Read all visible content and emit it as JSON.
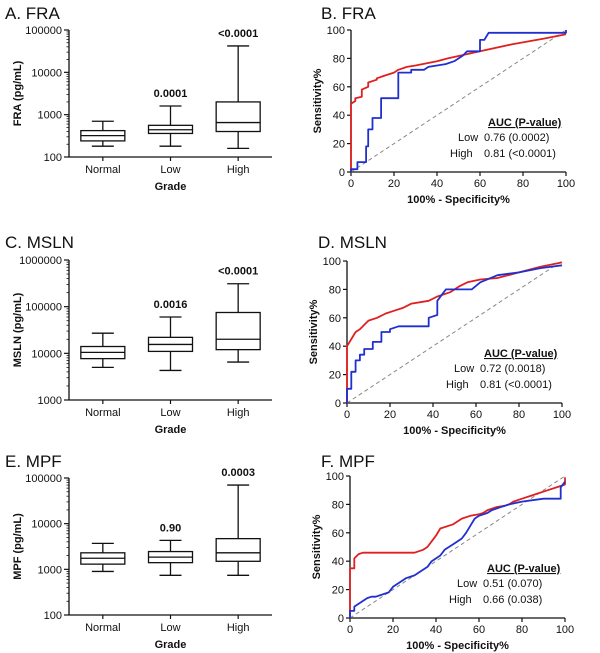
{
  "figure": {
    "background": "#ffffff"
  },
  "chart_data": [
    {
      "id": "A",
      "type": "boxplot",
      "title": "A. FRA",
      "xlabel": "Grade",
      "ylabel": "FRA (pg/mL)",
      "yscale": "log",
      "ylim": [
        100,
        100000
      ],
      "yticks": [
        "100",
        "1000",
        "10000",
        "100000"
      ],
      "categories": [
        "Normal",
        "Low",
        "High"
      ],
      "boxes": [
        {
          "group": "Normal",
          "min": 180,
          "q1": 240,
          "median": 320,
          "q3": 420,
          "max": 700,
          "label": ""
        },
        {
          "group": "Low",
          "min": 180,
          "q1": 360,
          "median": 440,
          "q3": 560,
          "max": 1600,
          "label": "0.0001"
        },
        {
          "group": "High",
          "min": 160,
          "q1": 400,
          "median": 650,
          "q3": 2000,
          "max": 42000,
          "label": "<0.0001"
        }
      ]
    },
    {
      "id": "B",
      "type": "roc",
      "title": "B. FRA",
      "xlabel": "100% - Specificity%",
      "ylabel": "Sensitivity%",
      "xlim": [
        0,
        100
      ],
      "ylim": [
        0,
        100
      ],
      "xticks": [
        "0",
        "20",
        "40",
        "60",
        "80",
        "100"
      ],
      "yticks": [
        "0",
        "20",
        "40",
        "60",
        "80",
        "100"
      ],
      "legend_title": "AUC (P-value)",
      "legend": [
        {
          "name": "Low",
          "value": "0.76 (0.0002)"
        },
        {
          "name": "High",
          "value": "0.81 (<0.0001)"
        }
      ],
      "series": [
        {
          "name": "High",
          "color": "#e02020",
          "x": [
            0,
            0,
            2,
            2,
            5,
            5,
            8,
            8,
            12,
            12,
            16,
            20,
            22,
            26,
            30,
            40,
            45,
            60,
            75,
            90,
            100
          ],
          "y": [
            0,
            48,
            50,
            52,
            53,
            58,
            60,
            63,
            65,
            66,
            68,
            70,
            72,
            74,
            75,
            78,
            80,
            85,
            90,
            94,
            97
          ]
        },
        {
          "name": "Low",
          "color": "#2030d0",
          "x": [
            0,
            0,
            3,
            3,
            7,
            7,
            8,
            8,
            10,
            10,
            14,
            14,
            22,
            22,
            28,
            28,
            34,
            36,
            44,
            48,
            52,
            54,
            60,
            60,
            62,
            64,
            100,
            100
          ],
          "y": [
            0,
            2,
            2,
            7,
            7,
            18,
            18,
            30,
            30,
            38,
            38,
            52,
            52,
            70,
            70,
            72,
            72,
            74,
            76,
            78,
            82,
            85,
            85,
            93,
            93,
            98,
            98,
            100
          ]
        },
        {
          "name": "Reference",
          "color": "#888888",
          "dashed": true,
          "x": [
            0,
            100
          ],
          "y": [
            0,
            100
          ]
        }
      ]
    },
    {
      "id": "C",
      "type": "boxplot",
      "title": "C. MSLN",
      "xlabel": "Grade",
      "ylabel": "MSLN (pg/mL)",
      "yscale": "log",
      "ylim": [
        1000,
        1000000
      ],
      "yticks": [
        "1000",
        "10000",
        "100000",
        "1000000"
      ],
      "categories": [
        "Normal",
        "Low",
        "High"
      ],
      "boxes": [
        {
          "group": "Normal",
          "min": 5000,
          "q1": 7700,
          "median": 10500,
          "q3": 14000,
          "max": 27000,
          "label": ""
        },
        {
          "group": "Low",
          "min": 4300,
          "q1": 11000,
          "median": 15500,
          "q3": 22000,
          "max": 60000,
          "label": "0.0016"
        },
        {
          "group": "High",
          "min": 6500,
          "q1": 12000,
          "median": 20000,
          "q3": 75000,
          "max": 310000,
          "label": "<0.0001"
        }
      ]
    },
    {
      "id": "D",
      "type": "roc",
      "title": "D. MSLN",
      "xlabel": "100% - Specificity%",
      "ylabel": "Sensitivity%",
      "xlim": [
        0,
        100
      ],
      "ylim": [
        0,
        100
      ],
      "xticks": [
        "0",
        "20",
        "40",
        "60",
        "80",
        "100"
      ],
      "yticks": [
        "0",
        "20",
        "40",
        "60",
        "80",
        "100"
      ],
      "legend_title": "AUC (P-value)",
      "legend": [
        {
          "name": "Low",
          "value": "0.72 (0.0018)"
        },
        {
          "name": "High",
          "value": "0.81 (<0.0001)"
        }
      ],
      "series": [
        {
          "name": "High",
          "color": "#e02020",
          "x": [
            0,
            0,
            2,
            4,
            6,
            8,
            10,
            14,
            18,
            22,
            26,
            30,
            38,
            42,
            48,
            52,
            56,
            62,
            70,
            80,
            90,
            100
          ],
          "y": [
            0,
            40,
            45,
            50,
            52,
            55,
            58,
            60,
            63,
            65,
            67,
            70,
            72,
            75,
            78,
            82,
            85,
            87,
            88,
            92,
            96,
            99
          ]
        },
        {
          "name": "Low",
          "color": "#2030d0",
          "x": [
            0,
            0,
            2,
            2,
            4,
            4,
            6,
            6,
            8,
            8,
            12,
            12,
            16,
            16,
            20,
            20,
            24,
            30,
            38,
            38,
            42,
            42,
            46,
            52,
            58,
            62,
            70,
            80,
            90,
            100
          ],
          "y": [
            0,
            10,
            10,
            22,
            22,
            30,
            30,
            34,
            34,
            38,
            38,
            43,
            43,
            50,
            50,
            52,
            54,
            54,
            54,
            60,
            62,
            72,
            80,
            80,
            80,
            85,
            90,
            92,
            95,
            97
          ]
        },
        {
          "name": "Reference",
          "color": "#888888",
          "dashed": true,
          "x": [
            0,
            100
          ],
          "y": [
            0,
            100
          ]
        }
      ]
    },
    {
      "id": "E",
      "type": "boxplot",
      "title": "E. MPF",
      "xlabel": "Grade",
      "ylabel": "MPF (pg/mL)",
      "yscale": "log",
      "ylim": [
        100,
        100000
      ],
      "yticks": [
        "100",
        "1000",
        "10000",
        "100000"
      ],
      "categories": [
        "Normal",
        "Low",
        "High"
      ],
      "boxes": [
        {
          "group": "Normal",
          "min": 900,
          "q1": 1300,
          "median": 1750,
          "q3": 2300,
          "max": 3700,
          "label": ""
        },
        {
          "group": "Low",
          "min": 740,
          "q1": 1400,
          "median": 1850,
          "q3": 2450,
          "max": 4300,
          "label": "0.90"
        },
        {
          "group": "High",
          "min": 740,
          "q1": 1500,
          "median": 2300,
          "q3": 4700,
          "max": 70000,
          "label": "0.0003"
        }
      ]
    },
    {
      "id": "F",
      "type": "roc",
      "title": "F. MPF",
      "xlabel": "100% - Specificity%",
      "ylabel": "Sensitivity%",
      "xlim": [
        0,
        100
      ],
      "ylim": [
        0,
        100
      ],
      "xticks": [
        "0",
        "20",
        "40",
        "60",
        "80",
        "100"
      ],
      "yticks": [
        "0",
        "20",
        "40",
        "60",
        "80",
        "100"
      ],
      "legend_title": "AUC (P-value)",
      "legend": [
        {
          "name": "Low",
          "value": "0.51 (0.070)"
        },
        {
          "name": "High",
          "value": "0.66 (0.038)"
        }
      ],
      "series": [
        {
          "name": "High",
          "color": "#e02020",
          "x": [
            0,
            0,
            2,
            2,
            4,
            6,
            8,
            30,
            34,
            36,
            38,
            40,
            42,
            48,
            52,
            56,
            60,
            62,
            64,
            68,
            72,
            74,
            76,
            80,
            84,
            88,
            92,
            96,
            100,
            100
          ],
          "y": [
            0,
            35,
            35,
            42,
            45,
            46,
            46,
            46,
            48,
            50,
            54,
            58,
            63,
            66,
            70,
            72,
            73,
            74,
            76,
            78,
            79,
            80,
            82,
            84,
            86,
            88,
            90,
            92,
            94,
            99
          ]
        },
        {
          "name": "Low",
          "color": "#2030d0",
          "x": [
            0,
            0,
            2,
            2,
            8,
            10,
            12,
            18,
            20,
            24,
            26,
            30,
            36,
            38,
            42,
            44,
            48,
            52,
            54,
            56,
            58,
            60,
            64,
            66,
            70,
            74,
            80,
            90,
            98,
            98,
            100
          ],
          "y": [
            0,
            5,
            5,
            8,
            14,
            15,
            15,
            18,
            22,
            26,
            28,
            30,
            36,
            40,
            44,
            48,
            52,
            56,
            60,
            65,
            70,
            72,
            74,
            76,
            78,
            80,
            82,
            84,
            84,
            92,
            96
          ]
        },
        {
          "name": "Reference",
          "color": "#888888",
          "dashed": true,
          "x": [
            0,
            100
          ],
          "y": [
            0,
            100
          ]
        }
      ]
    }
  ]
}
